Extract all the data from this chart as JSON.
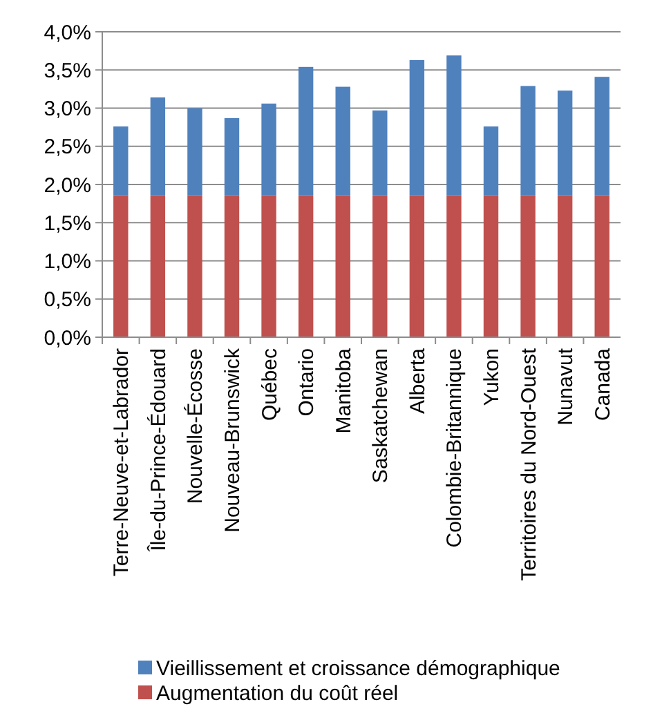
{
  "chart_data": {
    "type": "bar",
    "stacked": true,
    "categories": [
      "Terre-Neuve-et-Labrador",
      "Île-du-Prince-Édouard",
      "Nouvelle-Écosse",
      "Nouveau-Brunswick",
      "Québec",
      "Ontario",
      "Manitoba",
      "Saskatchewan",
      "Alberta",
      "Colombie-Britannique",
      "Yukon",
      "Territoires du Nord-Ouest",
      "Nunavut",
      "Canada"
    ],
    "series": [
      {
        "name": "Augmentation du coût réel",
        "color": "#c0504d",
        "values": [
          1.86,
          1.86,
          1.86,
          1.86,
          1.86,
          1.86,
          1.86,
          1.86,
          1.86,
          1.86,
          1.86,
          1.86,
          1.86,
          1.86
        ]
      },
      {
        "name": "Vieillissement et croissance démographique",
        "color": "#4f81bd",
        "values": [
          0.9,
          1.28,
          1.14,
          1.01,
          1.2,
          1.68,
          1.42,
          1.11,
          1.77,
          1.83,
          0.9,
          1.43,
          1.37,
          1.55
        ]
      }
    ],
    "ylim": [
      0,
      4
    ],
    "yticks": [
      {
        "value": 0,
        "label": "0,0%"
      },
      {
        "value": 0.5,
        "label": "0,5%"
      },
      {
        "value": 1,
        "label": "1,0%"
      },
      {
        "value": 1.5,
        "label": "1,5%"
      },
      {
        "value": 2,
        "label": "2,0%"
      },
      {
        "value": 2.5,
        "label": "2,5%"
      },
      {
        "value": 3,
        "label": "3,0%"
      },
      {
        "value": 3.5,
        "label": "3,5%"
      },
      {
        "value": 4,
        "label": "4,0%"
      }
    ],
    "grid": "y",
    "legend": "bottom"
  }
}
